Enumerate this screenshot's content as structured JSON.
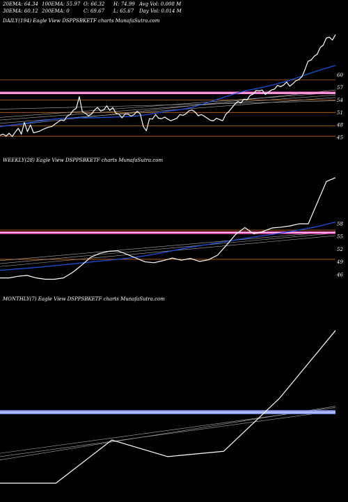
{
  "header": {
    "ema20": "20EMA: 64.34",
    "ema30": "30EMA: 60.12",
    "ema100": "100EMA: 55.97",
    "ema200": "200EMA: 0",
    "open": "O: 66.32",
    "close": "C: 69.67",
    "high": "H: 74.99",
    "low": "L: 65.67",
    "avg_vol": "Avg Vol: 0.008  M",
    "day_vol": "Day Vol: 0.014  M"
  },
  "colors": {
    "background": "#000000",
    "price_line": "#ffffff",
    "ema_line": "#1e4fd8",
    "pink_band": "#ff66cc",
    "orange_line": "#c8640a",
    "mid_band": "#8899ee"
  },
  "chart_data": [
    {
      "type": "line",
      "title": "DAILY(194) Eagle  View  DSPPSBKETF charts MunafaSutra.com",
      "y_ticks": [
        "60",
        "57",
        "54",
        "51",
        "48",
        "45"
      ],
      "y_tick_values": [
        60,
        57,
        54,
        51,
        48,
        45
      ],
      "ylim": [
        42.5,
        72
      ],
      "pink_band": [
        55.4,
        56.0
      ],
      "orange_levels": [
        58.8,
        54.0,
        51.0,
        47.8,
        45.3
      ],
      "series": [
        {
          "role": "price",
          "values": [
            45.5,
            45.8,
            45.3,
            46.0,
            45.2,
            46.3,
            47.2,
            45.8,
            48.6,
            46.4,
            48.0,
            46.1,
            46.3,
            46.5,
            46.9,
            47.2,
            47.5,
            47.6,
            48.2,
            48.7,
            49.2,
            49.0,
            50.1,
            50.5,
            51.5,
            52.0,
            54.8,
            51.2,
            50.8,
            50.2,
            50.6,
            51.6,
            52.2,
            51.3,
            51.6,
            52.6,
            51.5,
            52.2,
            50.8,
            50.6,
            49.7,
            50.6,
            50.6,
            50.1,
            50.5,
            51.3,
            50.6,
            47.6,
            46.6,
            49.5,
            49.4,
            50.5,
            49.6,
            49.5,
            49.9,
            49.4,
            49.0,
            49.3,
            49.6,
            50.5,
            50.3,
            50.7,
            51.4,
            51.6,
            51.1,
            50.2,
            50.5,
            50.1,
            49.6,
            49.1,
            49.0,
            49.6,
            49.3,
            49.0,
            50.5,
            51.2,
            52.1,
            53.0,
            53.6,
            53.3,
            54.2,
            54.0,
            55.1,
            55.4,
            56.3,
            56.2,
            56.4,
            55.3,
            55.9,
            56.4,
            56.6,
            57.5,
            57.2,
            57.6,
            58.3,
            57.3,
            57.9,
            58.6,
            58.9,
            59.6,
            61.3,
            63.3,
            63.6,
            64.5,
            65.0,
            66.6,
            67.2,
            68.9,
            69.1,
            68.4,
            69.7
          ]
        },
        {
          "role": "ema",
          "values": [
            47.6,
            48.0,
            48.4,
            48.9,
            49.3,
            49.6,
            49.7,
            49.7,
            49.8,
            49.9,
            50.0,
            50.3,
            50.8,
            51.3,
            51.7,
            52.3,
            53.3,
            54.3,
            55.3,
            56.2,
            56.8,
            57.5,
            58.3,
            59.3,
            60.4,
            61.4,
            62.3
          ]
        }
      ]
    },
    {
      "type": "line",
      "title": "WEEKLY(28) Eagle  View  DSPPSBKETF charts MunafaSutra.com",
      "y_ticks": [
        "58",
        "55",
        "52",
        "49",
        "46"
      ],
      "y_tick_values": [
        58,
        55,
        52,
        49,
        46
      ],
      "ylim": [
        43,
        72
      ],
      "pink_band": [
        55.6,
        56.2
      ],
      "orange_levels": [
        56.5,
        49.6
      ],
      "series": [
        {
          "role": "price",
          "values": [
            45.2,
            45.2,
            45.6,
            45.8,
            45.2,
            44.9,
            44.9,
            45.2,
            46.5,
            48.2,
            50.1,
            51.0,
            51.5,
            51.6,
            50.8,
            49.9,
            49.0,
            48.8,
            49.3,
            49.9,
            49.4,
            49.8,
            49.1,
            49.5,
            50.6,
            53.0,
            55.5,
            57.1,
            55.6,
            56.2,
            57.0,
            57.2,
            57.5,
            58.0,
            58.0,
            63.0,
            68.0,
            68.9
          ]
        },
        {
          "role": "ema",
          "values": [
            47.0,
            47.4,
            47.8,
            48.3,
            48.8,
            49.3,
            49.8,
            50.5,
            51.4,
            52.4,
            53.2,
            54.0,
            54.8,
            55.5,
            56.3,
            57.2,
            58.4
          ]
        }
      ]
    },
    {
      "type": "line",
      "title": "MONTHLY(7) Eagle  View  DSPPSBKETF charts MunafaSutra.com",
      "ylim": [
        43,
        72
      ],
      "mid_band": [
        55.4,
        56.0
      ],
      "series": [
        {
          "role": "price",
          "values": [
            45.0,
            45.0,
            51.5,
            49.0,
            49.8,
            57.8,
            68.0
          ]
        }
      ]
    }
  ]
}
